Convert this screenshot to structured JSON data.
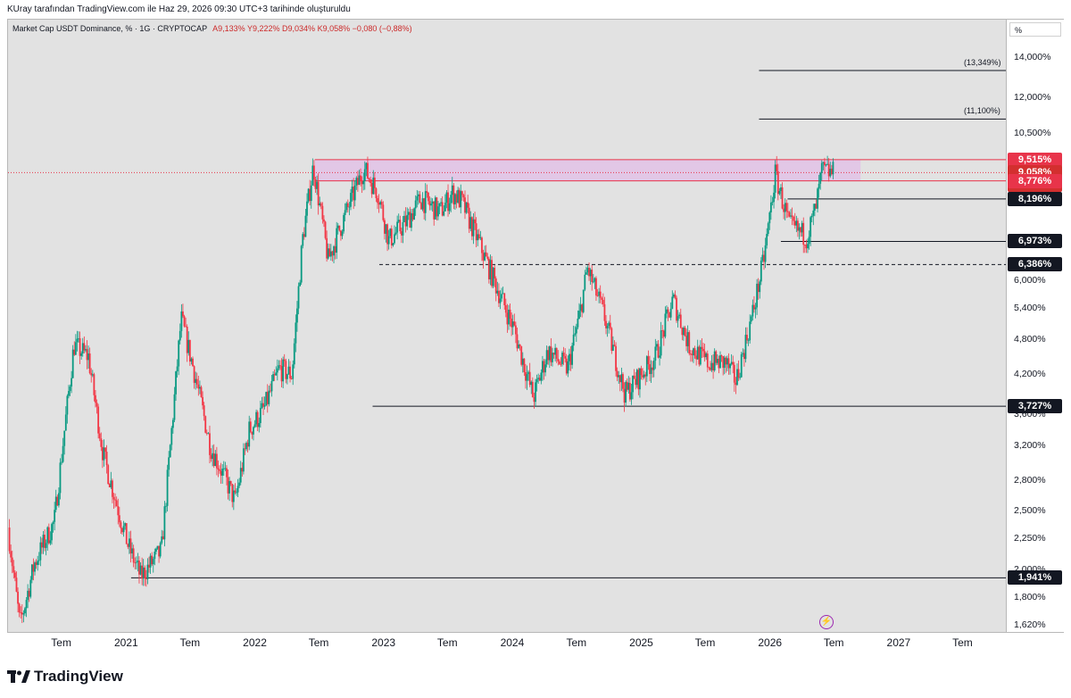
{
  "attribution": "KUray tarafından TradingView.com ile Haz 29, 2026 09:30 UTC+3 tarihinde oluşturuldu",
  "legend": {
    "symbol": "Market Cap USDT Dominance, % · 1G · CRYPTOCAP",
    "open": "A9,133%",
    "high": "Y9,222%",
    "low": "D9,034%",
    "close": "K9,058%",
    "change": "−0,080 (−0,88%)"
  },
  "unit_label": "%",
  "branding": "TradingView",
  "colors": {
    "accent": "#2962ff",
    "up": "#089981",
    "down": "#f23645",
    "zone": "#e1bee7",
    "zone_border": "#e8344a"
  },
  "chart_data": {
    "type": "candlestick",
    "title": "Market Cap USDT Dominance, % · 1G · CRYPTOCAP",
    "scale": "log",
    "ylim": [
      1.58,
      16.2
    ],
    "xlim": [
      "2020-02-01",
      "2027-11-01"
    ],
    "y_ticks": [
      "14,000%",
      "12,000%",
      "10,500%",
      "6,000%",
      "5,400%",
      "4,800%",
      "4,200%",
      "3,600%",
      "3,200%",
      "2,800%",
      "2,500%",
      "2,250%",
      "2,000%",
      "1,800%",
      "1,620%"
    ],
    "x_ticks": [
      {
        "label": "Tem",
        "date": "2020-07-01"
      },
      {
        "label": "2021",
        "date": "2021-01-01"
      },
      {
        "label": "Tem",
        "date": "2021-07-01"
      },
      {
        "label": "2022",
        "date": "2022-01-01"
      },
      {
        "label": "Tem",
        "date": "2022-07-01"
      },
      {
        "label": "2023",
        "date": "2023-01-01"
      },
      {
        "label": "Tem",
        "date": "2023-07-01"
      },
      {
        "label": "2024",
        "date": "2024-01-01"
      },
      {
        "label": "Tem",
        "date": "2024-07-01"
      },
      {
        "label": "2025",
        "date": "2025-01-01"
      },
      {
        "label": "Tem",
        "date": "2025-07-01"
      },
      {
        "label": "2026",
        "date": "2026-01-01"
      },
      {
        "label": "Tem",
        "date": "2026-07-01"
      },
      {
        "label": "2027",
        "date": "2027-01-01"
      },
      {
        "label": "Tem",
        "date": "2027-07-01"
      }
    ],
    "price_path": [
      [
        "2020-02-05",
        2.35
      ],
      [
        "2020-03-10",
        1.62
      ],
      [
        "2020-04-20",
        2.05
      ],
      [
        "2020-06-15",
        2.4
      ],
      [
        "2020-08-10",
        4.7
      ],
      [
        "2020-09-20",
        4.5
      ],
      [
        "2020-11-01",
        3.1
      ],
      [
        "2021-01-10",
        2.2
      ],
      [
        "2021-02-15",
        1.95
      ],
      [
        "2021-04-15",
        2.15
      ],
      [
        "2021-06-10",
        5.2
      ],
      [
        "2021-07-15",
        4.3
      ],
      [
        "2021-09-01",
        3.2
      ],
      [
        "2021-11-10",
        2.6
      ],
      [
        "2021-12-20",
        3.4
      ],
      [
        "2022-02-01",
        3.7
      ],
      [
        "2022-03-15",
        4.3
      ],
      [
        "2022-04-20",
        4.2
      ],
      [
        "2022-05-20",
        7.0
      ],
      [
        "2022-06-20",
        9.3
      ],
      [
        "2022-08-01",
        6.5
      ],
      [
        "2022-09-10",
        7.5
      ],
      [
        "2022-11-10",
        9.2
      ],
      [
        "2022-12-20",
        8.4
      ],
      [
        "2023-01-20",
        7.0
      ],
      [
        "2023-03-10",
        7.5
      ],
      [
        "2023-04-20",
        8.2
      ],
      [
        "2023-06-15",
        7.8
      ],
      [
        "2023-07-20",
        8.4
      ],
      [
        "2023-08-15",
        8.1
      ],
      [
        "2023-09-30",
        7.0
      ],
      [
        "2023-11-15",
        6.0
      ],
      [
        "2024-01-10",
        5.0
      ],
      [
        "2024-03-05",
        3.85
      ],
      [
        "2024-04-15",
        4.6
      ],
      [
        "2024-06-10",
        4.3
      ],
      [
        "2024-07-15",
        5.3
      ],
      [
        "2024-08-05",
        6.3
      ],
      [
        "2024-09-20",
        5.3
      ],
      [
        "2024-11-20",
        3.9
      ],
      [
        "2024-12-20",
        4.1
      ],
      [
        "2025-02-15",
        4.5
      ],
      [
        "2025-04-05",
        5.6
      ],
      [
        "2025-05-20",
        4.7
      ],
      [
        "2025-07-10",
        4.4
      ],
      [
        "2025-09-01",
        4.4
      ],
      [
        "2025-10-01",
        4.1
      ],
      [
        "2025-11-20",
        5.4
      ],
      [
        "2025-12-20",
        6.6
      ],
      [
        "2026-01-20",
        9.0
      ],
      [
        "2026-03-01",
        7.4
      ],
      [
        "2026-04-20",
        7.1
      ],
      [
        "2026-05-15",
        7.9
      ],
      [
        "2026-06-01",
        9.1
      ],
      [
        "2026-06-29",
        9.06
      ]
    ],
    "resistance_zone": {
      "from": "2022-06-20",
      "to": "2026-09-15",
      "low": 8.776,
      "high": 9.515
    },
    "levels": [
      {
        "value": 13.349,
        "label": "(13,349%)",
        "from": "2025-12-01",
        "style": "fib"
      },
      {
        "value": 11.1,
        "label": "(11,100%)",
        "from": "2025-12-01",
        "style": "fib"
      },
      {
        "value": 9.515,
        "label": "9,515%",
        "style": "zone"
      },
      {
        "value": 9.058,
        "label": "9,058%",
        "style": "current",
        "countdown": "17:29:49"
      },
      {
        "value": 8.776,
        "label": "8,776%",
        "style": "zone"
      },
      {
        "value": 8.196,
        "label": "8,196%",
        "from": "2026-02-20",
        "style": "solid"
      },
      {
        "value": 6.973,
        "label": "6,973%",
        "from": "2026-02-01",
        "style": "solid"
      },
      {
        "value": 6.386,
        "label": "6,386%",
        "from": "2022-12-20",
        "style": "dashed"
      },
      {
        "value": 3.727,
        "label": "3,727%",
        "from": "2022-12-01",
        "style": "solid"
      },
      {
        "value": 1.941,
        "label": "1,941%",
        "from": "2021-01-15",
        "style": "solid"
      }
    ]
  }
}
